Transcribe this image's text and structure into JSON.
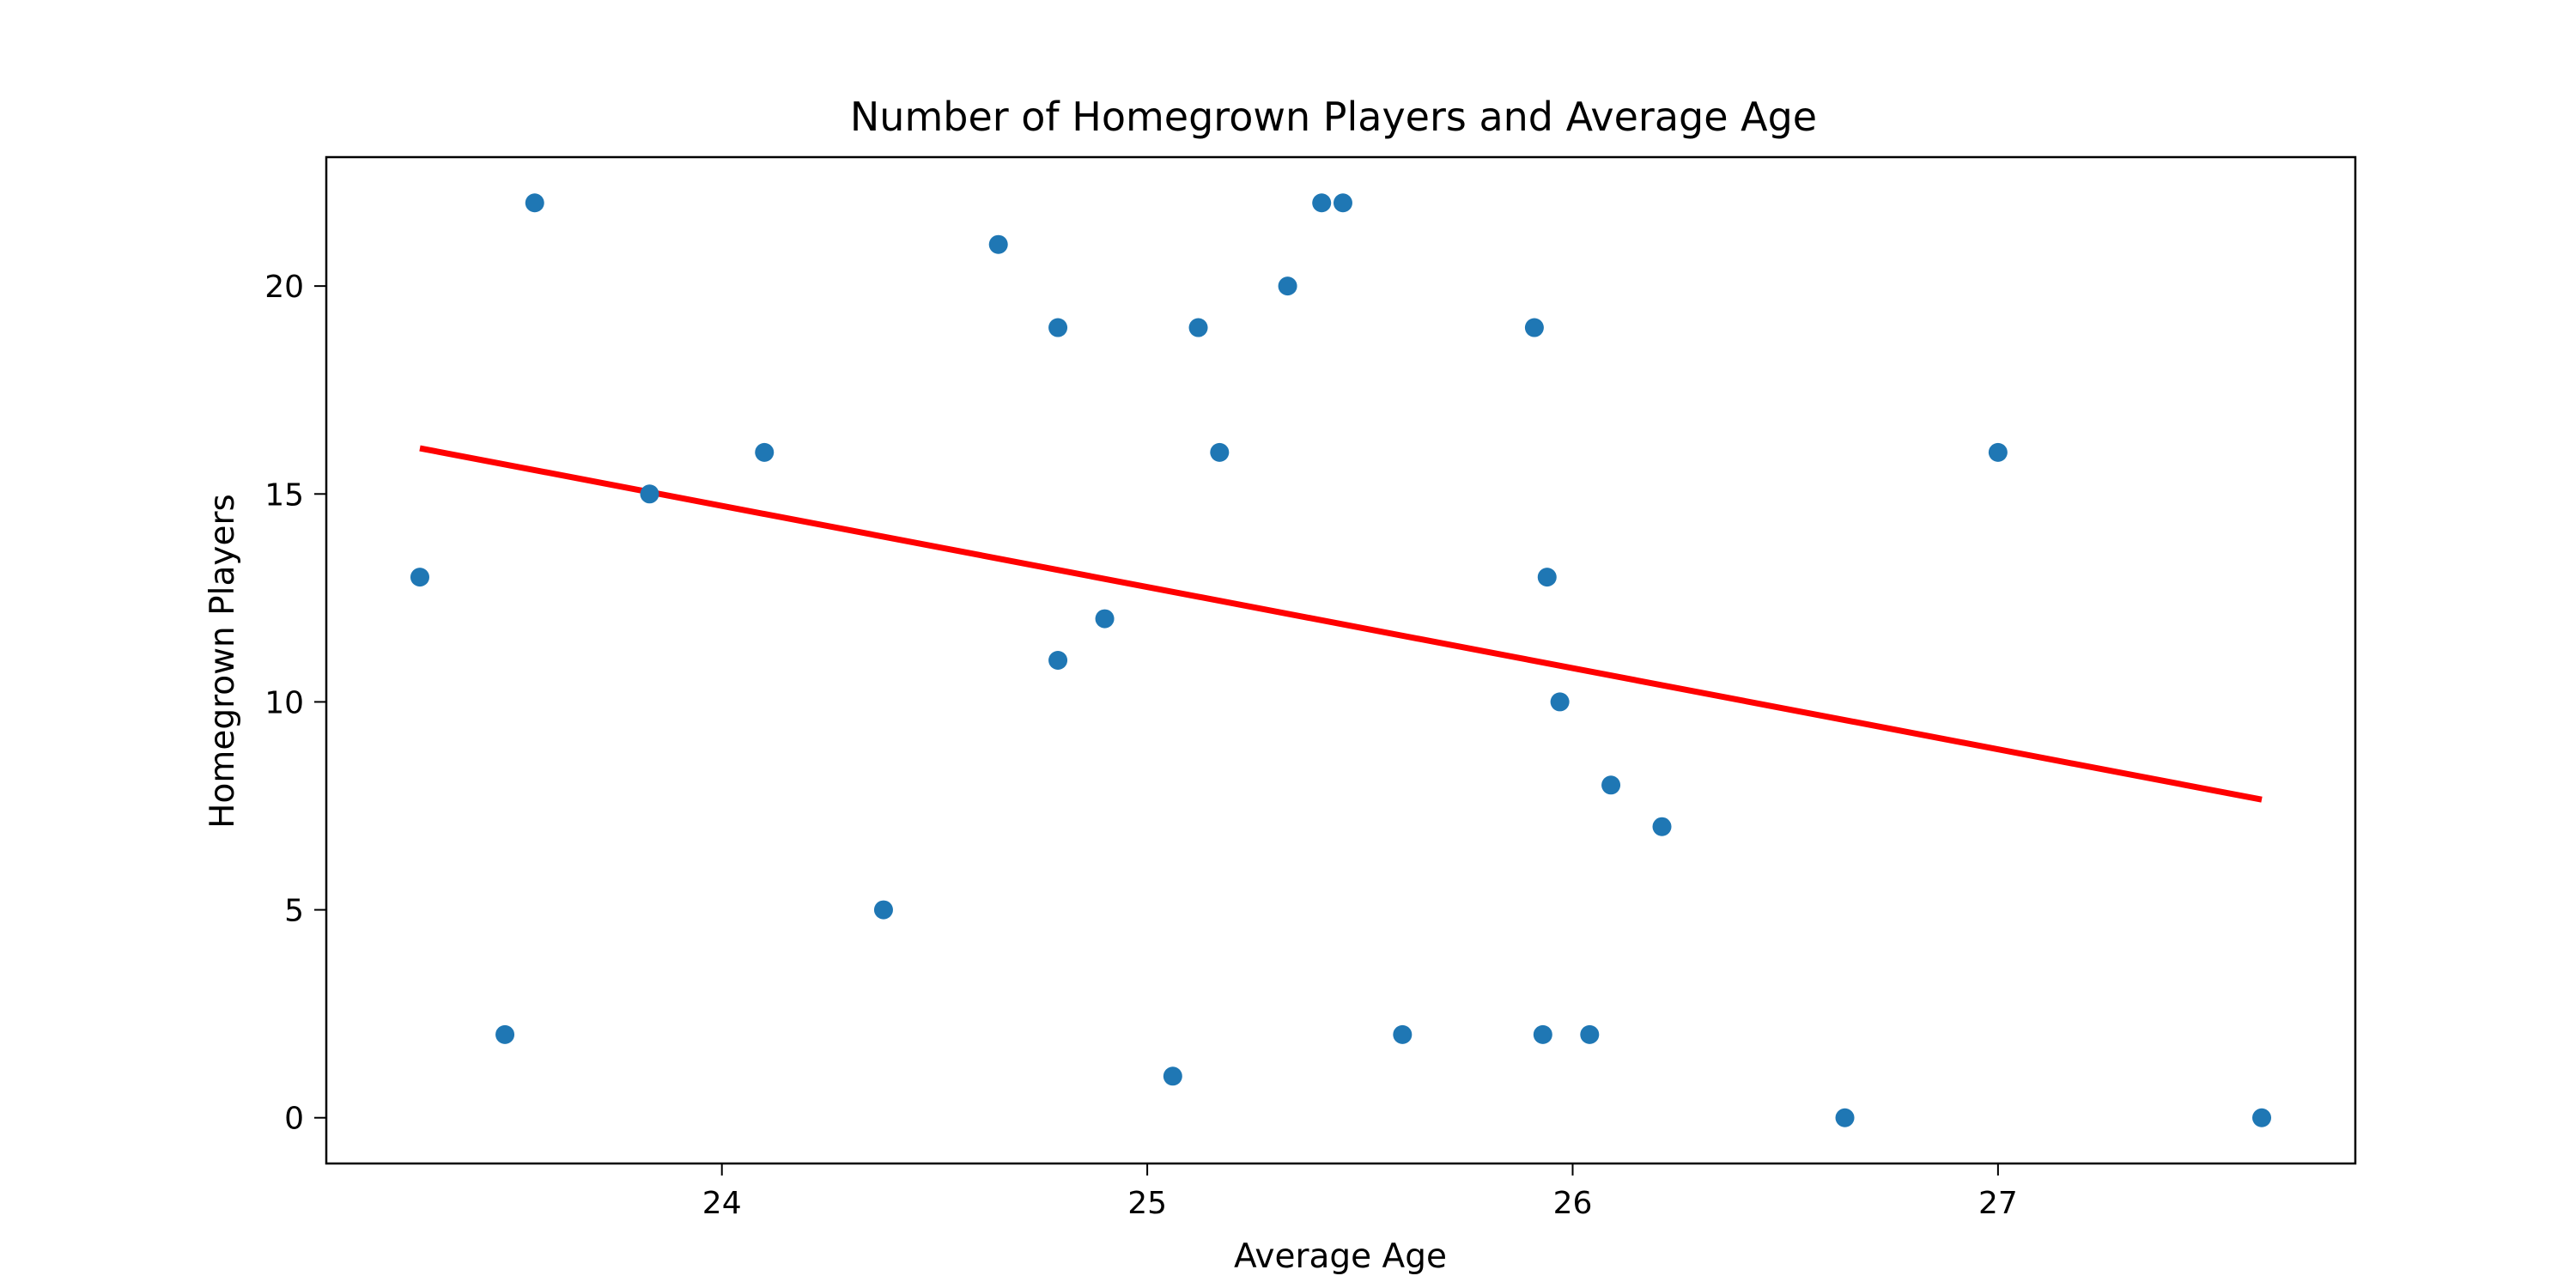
{
  "chart_data": {
    "type": "scatter",
    "title": "Number of Homegrown Players and Average Age",
    "xlabel": "Average Age",
    "ylabel": "Homegrown Players",
    "xlim": [
      23.07,
      27.84
    ],
    "ylim": [
      -1.1,
      23.1
    ],
    "xticks": [
      24,
      25,
      26,
      27
    ],
    "yticks": [
      0,
      5,
      10,
      15,
      20
    ],
    "grid": false,
    "point_color": "#1f77b4",
    "trend_color": "#ff0000",
    "points": [
      {
        "x": 23.29,
        "y": 13
      },
      {
        "x": 23.49,
        "y": 2
      },
      {
        "x": 23.56,
        "y": 22
      },
      {
        "x": 23.83,
        "y": 15
      },
      {
        "x": 24.1,
        "y": 16
      },
      {
        "x": 24.38,
        "y": 5
      },
      {
        "x": 24.65,
        "y": 21
      },
      {
        "x": 24.79,
        "y": 19
      },
      {
        "x": 24.79,
        "y": 11
      },
      {
        "x": 24.9,
        "y": 12
      },
      {
        "x": 25.06,
        "y": 1
      },
      {
        "x": 25.12,
        "y": 19
      },
      {
        "x": 25.17,
        "y": 16
      },
      {
        "x": 25.33,
        "y": 20
      },
      {
        "x": 25.41,
        "y": 22
      },
      {
        "x": 25.46,
        "y": 22
      },
      {
        "x": 25.6,
        "y": 2
      },
      {
        "x": 25.91,
        "y": 19
      },
      {
        "x": 25.93,
        "y": 2
      },
      {
        "x": 25.94,
        "y": 13
      },
      {
        "x": 25.97,
        "y": 10
      },
      {
        "x": 26.04,
        "y": 2
      },
      {
        "x": 26.09,
        "y": 8
      },
      {
        "x": 26.21,
        "y": 7
      },
      {
        "x": 26.64,
        "y": 0
      },
      {
        "x": 27.0,
        "y": 16
      },
      {
        "x": 27.62,
        "y": 0
      }
    ],
    "trendline": {
      "x": [
        23.29,
        27.62
      ],
      "y": [
        16.1,
        7.65
      ]
    }
  }
}
